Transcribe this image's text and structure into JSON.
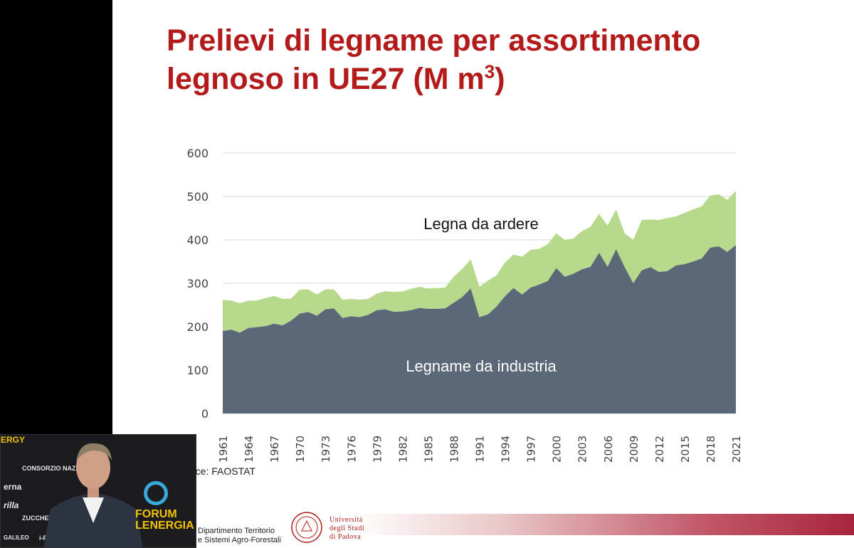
{
  "slide": {
    "title_line1": "Prelievi di legname per assortimento",
    "title_line2": "legnoso in UE27 (M m",
    "title_sup": "3",
    "title_close": ")",
    "source": "rce: FAOSTAT",
    "dept_line1": "Dipartimento Territorio",
    "dept_line2": "e Sistemi Agro-Forestali",
    "uni_line1": "Università",
    "uni_line2": "degli Studi",
    "uni_line3": "di Padova"
  },
  "webcam": {
    "banner": "ERGY",
    "sponsors": [
      "CONSORZIO NAZIONALE",
      "erna",
      "rilla",
      "ZUCCHETT",
      "GALILEO",
      "i-F"
    ],
    "event_line1": "FORUM",
    "event_line2": "LENERGIA"
  },
  "colors": {
    "title": "#b31b1b",
    "industrial": "#5b6878",
    "fuel": "#b7d98b",
    "grid": "#d9d9d9"
  },
  "chart_data": {
    "type": "area",
    "stacked": true,
    "ylim": [
      0,
      600
    ],
    "yticks": [
      0,
      100,
      200,
      300,
      400,
      500,
      600
    ],
    "grid": true,
    "x_tick_labels": [
      "1961",
      "1964",
      "1967",
      "1970",
      "1973",
      "1976",
      "1979",
      "1982",
      "1985",
      "1988",
      "1991",
      "1994",
      "1997",
      "2000",
      "2003",
      "2006",
      "2009",
      "2012",
      "2015",
      "2018",
      "2021"
    ],
    "x": [
      1961,
      1962,
      1963,
      1964,
      1965,
      1966,
      1967,
      1968,
      1969,
      1970,
      1971,
      1972,
      1973,
      1974,
      1975,
      1976,
      1977,
      1978,
      1979,
      1980,
      1981,
      1982,
      1983,
      1984,
      1985,
      1986,
      1987,
      1988,
      1989,
      1990,
      1991,
      1992,
      1993,
      1994,
      1995,
      1996,
      1997,
      1998,
      1999,
      2000,
      2001,
      2002,
      2003,
      2004,
      2005,
      2006,
      2007,
      2008,
      2009,
      2010,
      2011,
      2012,
      2013,
      2014,
      2015,
      2016,
      2017,
      2018,
      2019,
      2020,
      2021
    ],
    "series": [
      {
        "name": "Legname da industria",
        "values": [
          190,
          193,
          186,
          197,
          199,
          201,
          207,
          203,
          214,
          230,
          234,
          225,
          240,
          242,
          220,
          224,
          222,
          227,
          238,
          240,
          234,
          235,
          238,
          243,
          241,
          241,
          242,
          255,
          268,
          288,
          222,
          228,
          246,
          270,
          289,
          274,
          290,
          297,
          305,
          335,
          315,
          322,
          332,
          338,
          370,
          338,
          378,
          337,
          300,
          330,
          337,
          326,
          328,
          341,
          344,
          350,
          357,
          382,
          385,
          372,
          388
        ]
      },
      {
        "name": "Legna da ardere",
        "values": [
          72,
          67,
          68,
          63,
          61,
          65,
          64,
          61,
          51,
          55,
          52,
          49,
          46,
          44,
          42,
          40,
          40,
          37,
          38,
          42,
          46,
          46,
          49,
          49,
          47,
          48,
          48,
          60,
          65,
          67,
          70,
          78,
          72,
          78,
          77,
          87,
          87,
          82,
          85,
          80,
          85,
          81,
          88,
          92,
          90,
          95,
          92,
          78,
          100,
          116,
          110,
          120,
          122,
          113,
          118,
          120,
          120,
          120,
          120,
          120,
          125
        ]
      }
    ],
    "annotations": [
      "Legna da ardere",
      "Legname da industria"
    ]
  }
}
